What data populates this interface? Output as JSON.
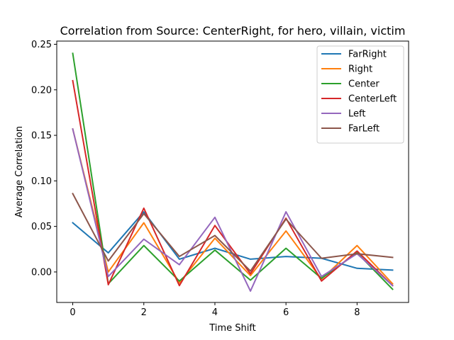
{
  "chart_data": {
    "type": "line",
    "title": "Correlation from Source: CenterRight, for hero, villain, victim",
    "xlabel": "Time Shift",
    "ylabel": "Average Correlation",
    "xlim": [
      -0.45,
      9.45
    ],
    "ylim": [
      -0.0335,
      0.2535
    ],
    "xticks": [
      0,
      2,
      4,
      6,
      8
    ],
    "yticks": [
      0.0,
      0.05,
      0.1,
      0.15,
      0.2,
      0.25
    ],
    "ytick_labels": [
      "0.00",
      "0.05",
      "0.10",
      "0.15",
      "0.20",
      "0.25"
    ],
    "grid": false,
    "legend_position": "upper right",
    "x": [
      0,
      1,
      2,
      3,
      4,
      5,
      6,
      7,
      8,
      9
    ],
    "series": [
      {
        "name": "FarRight",
        "color": "#1f77b4",
        "values": [
          0.054,
          0.021,
          0.066,
          0.014,
          0.026,
          0.014,
          0.017,
          0.015,
          0.004,
          0.002
        ]
      },
      {
        "name": "Right",
        "color": "#ff7f0e",
        "values": [
          0.157,
          0.0,
          0.054,
          -0.012,
          0.037,
          -0.004,
          0.045,
          -0.008,
          0.029,
          -0.013
        ]
      },
      {
        "name": "Center",
        "color": "#2ca02c",
        "values": [
          0.24,
          -0.013,
          0.029,
          -0.01,
          0.024,
          -0.009,
          0.026,
          -0.007,
          0.021,
          -0.019
        ]
      },
      {
        "name": "CenterLeft",
        "color": "#d62728",
        "values": [
          0.21,
          -0.014,
          0.07,
          -0.015,
          0.051,
          -0.002,
          0.059,
          -0.01,
          0.023,
          -0.015
        ]
      },
      {
        "name": "Left",
        "color": "#9467bd",
        "values": [
          0.157,
          -0.005,
          0.036,
          0.008,
          0.06,
          -0.021,
          0.066,
          -0.005,
          0.02,
          -0.015
        ]
      },
      {
        "name": "FarLeft",
        "color": "#8c564b",
        "values": [
          0.086,
          0.012,
          0.064,
          0.017,
          0.04,
          0.001,
          0.058,
          0.015,
          0.02,
          0.016
        ]
      }
    ]
  }
}
